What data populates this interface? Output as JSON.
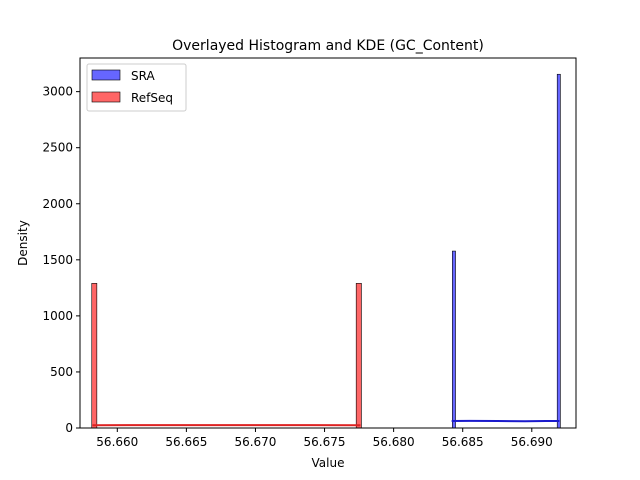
{
  "chart_data": {
    "type": "bar",
    "title": "Overlayed Histogram and KDE (GC_Content)",
    "xlabel": "Value",
    "ylabel": "Density",
    "xlim": [
      56.6573,
      56.6932
    ],
    "ylim": [
      0,
      3300
    ],
    "xticks": [
      56.66,
      56.665,
      56.67,
      56.675,
      56.68,
      56.685,
      56.69
    ],
    "xtick_labels": [
      "56.660",
      "56.665",
      "56.670",
      "56.675",
      "56.680",
      "56.685",
      "56.690"
    ],
    "yticks": [
      0,
      500,
      1000,
      1500,
      2000,
      2500,
      3000
    ],
    "ytick_labels": [
      "0",
      "500",
      "1000",
      "1500",
      "2000",
      "2500",
      "3000"
    ],
    "legend_position": "top-left",
    "grid": false,
    "series": [
      {
        "name": "SRA",
        "color": "#5555ff",
        "kde_color": "#1a1acc",
        "histogram": [
          {
            "x0": 56.68425,
            "x1": 56.68448,
            "density": 1578
          },
          {
            "x0": 56.69184,
            "x1": 56.69207,
            "density": 3155
          }
        ],
        "kde": [
          [
            56.6842,
            62
          ],
          [
            56.6855,
            64
          ],
          [
            56.6875,
            62
          ],
          [
            56.6895,
            60
          ],
          [
            56.691,
            63
          ],
          [
            56.692,
            62
          ]
        ]
      },
      {
        "name": "RefSeq",
        "color": "#ff5555",
        "kde_color": "#dd2222",
        "histogram": [
          {
            "x0": 56.65815,
            "x1": 56.65852,
            "density": 1290
          },
          {
            "x0": 56.67729,
            "x1": 56.67767,
            "density": 1290
          }
        ],
        "kde": [
          [
            56.6582,
            25
          ],
          [
            56.662,
            26
          ],
          [
            56.668,
            26
          ],
          [
            56.674,
            26
          ],
          [
            56.6776,
            25
          ]
        ]
      }
    ]
  }
}
